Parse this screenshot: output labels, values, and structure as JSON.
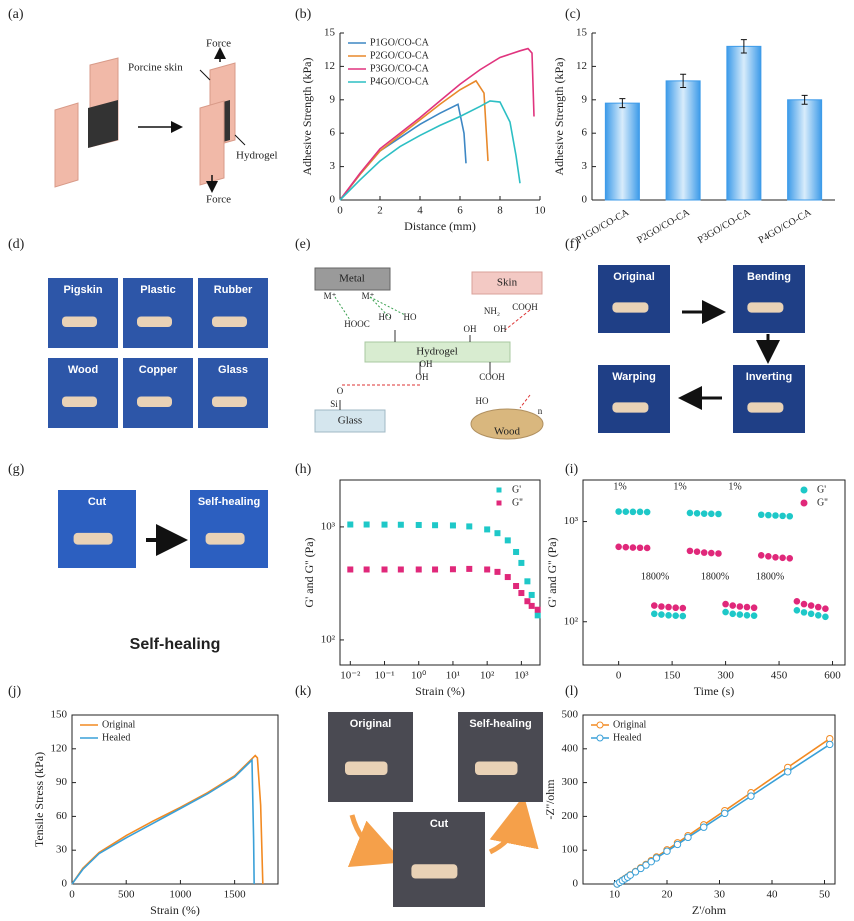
{
  "panel_labels": [
    "(a)",
    "(b)",
    "(c)",
    "(d)",
    "(e)",
    "(f)",
    "(g)",
    "(h)",
    "(i)",
    "(j)",
    "(k)",
    "(l)"
  ],
  "panel_a": {
    "labels": [
      "Force",
      "Porcine skin",
      "Hydrogel",
      "Force"
    ]
  },
  "panel_d": {
    "tiles": [
      "Pigskin",
      "Plastic",
      "Rubber",
      "Wood",
      "Copper",
      "Glass"
    ]
  },
  "panel_e": {
    "nodes": [
      "Metal",
      "Skin",
      "Hydrogel",
      "Glass",
      "Wood"
    ],
    "groups": [
      "M⁺",
      "M⁺",
      "HOOC",
      "HO",
      "HO",
      "NH₂",
      "COOH",
      "OH",
      "OH",
      "OH",
      "O",
      "Si",
      "COOH",
      "HO",
      "OH",
      "n"
    ]
  },
  "panel_f": {
    "tiles": [
      "Original",
      "Bending",
      "Inverting",
      "Warping"
    ]
  },
  "panel_g": {
    "tiles": [
      "Cut",
      "Self-healing"
    ],
    "caption": "Self-healing"
  },
  "panel_k": {
    "tiles": [
      "Original",
      "Self-healing",
      "Cut"
    ]
  },
  "chart_data": [
    {
      "type": "line",
      "xlabel": "Distance (mm)",
      "ylabel": "Adhesive Strength (kPa)",
      "frame": false,
      "xlim": [
        0,
        10
      ],
      "xticks": [
        0,
        2,
        4,
        6,
        8,
        10
      ],
      "ylim": [
        0,
        15
      ],
      "yticks": [
        0,
        3,
        6,
        9,
        12,
        15
      ],
      "legend": "upper left",
      "series": [
        {
          "name": "P1GO/CO-CA",
          "color": "#3d87c4",
          "x": [
            0,
            1,
            2,
            3,
            4,
            5,
            5.9,
            6.2,
            6.3
          ],
          "values": [
            0,
            2.3,
            4.4,
            5.6,
            6.8,
            7.8,
            8.6,
            6,
            3.3
          ]
        },
        {
          "name": "P2GO/CO-CA",
          "color": "#e8892b",
          "x": [
            0,
            1,
            2,
            3,
            4,
            5,
            6,
            6.8,
            7.2,
            7.4
          ],
          "values": [
            0,
            2.3,
            4.4,
            5.8,
            7.2,
            8.6,
            9.9,
            10.7,
            9.6,
            3.5
          ]
        },
        {
          "name": "P3GO/CO-CA",
          "color": "#e0347e",
          "x": [
            0,
            1,
            2,
            3,
            4,
            5,
            6,
            7,
            8,
            9,
            9.4,
            9.6,
            9.7
          ],
          "values": [
            0,
            2.4,
            4.6,
            6,
            7.4,
            8.9,
            10.4,
            11.7,
            12.8,
            13.4,
            13.6,
            13.2,
            7.5
          ]
        },
        {
          "name": "P4GO/CO-CA",
          "color": "#2dbfc4",
          "x": [
            0,
            1,
            2,
            3,
            4,
            5,
            6,
            7,
            7.5,
            8,
            8.5,
            8.8,
            9
          ],
          "values": [
            0,
            1.8,
            3.5,
            4.8,
            5.8,
            6.7,
            7.5,
            8.4,
            8.9,
            8.8,
            7,
            4,
            1.5
          ]
        }
      ]
    },
    {
      "type": "bar",
      "ylabel": "Adhesive Strength (kPa)",
      "frame": false,
      "color": "#3d9be9",
      "categories": [
        "P1GO/CO-CA",
        "P2GO/CO-CA",
        "P3GO/CO-CA",
        "P4GO/CO-CA"
      ],
      "values": [
        8.7,
        10.7,
        13.8,
        9.0
      ],
      "errors": [
        0.4,
        0.6,
        0.6,
        0.4
      ],
      "ylim": [
        0,
        15
      ],
      "yticks": [
        0,
        3,
        6,
        9,
        12,
        15
      ]
    },
    {
      "type": "scatter",
      "marker": "square",
      "xlabel": "Strain (%)",
      "ylabel": "G' and G'' (Pa)",
      "frame": true,
      "xlog": true,
      "ylog": true,
      "xlim": [
        0.005,
        3500
      ],
      "ylim": [
        60,
        2600
      ],
      "legend": "upper right",
      "xticks": [
        {
          "value": 0.01,
          "label": "10⁻²"
        },
        {
          "value": 0.1,
          "label": "10⁻¹"
        },
        {
          "value": 1,
          "label": "10⁰"
        },
        {
          "value": 10,
          "label": "10¹"
        },
        {
          "value": 100,
          "label": "10²"
        },
        {
          "value": 1000,
          "label": "10³"
        }
      ],
      "yticks": [
        {
          "value": 100,
          "label": "10²"
        },
        {
          "value": 1000,
          "label": "10³"
        }
      ],
      "x": [
        0.01,
        0.03,
        0.1,
        0.3,
        1,
        3,
        10,
        30,
        100,
        200,
        400,
        700,
        1000,
        1500,
        2000,
        3000
      ],
      "series": [
        {
          "name": "G'",
          "color": "#1ec8c8",
          "values": [
            1050,
            1050,
            1048,
            1045,
            1040,
            1035,
            1030,
            1010,
            950,
            880,
            760,
            600,
            480,
            330,
            250,
            165
          ]
        },
        {
          "name": "G''",
          "color": "#e0287a",
          "values": [
            420,
            420,
            420,
            420,
            420,
            420,
            422,
            425,
            420,
            400,
            360,
            300,
            260,
            220,
            200,
            185
          ]
        }
      ]
    },
    {
      "type": "scatter",
      "marker": "circle",
      "xlabel": "Time (s)",
      "ylabel": "G' and G'' (Pa)",
      "frame": true,
      "ylog": true,
      "xlim": [
        -100,
        635
      ],
      "ylim": [
        37,
        2600
      ],
      "legend": "upper right",
      "xticks": [
        0,
        150,
        300,
        450,
        600
      ],
      "yticks": [
        {
          "value": 100,
          "label": "10²"
        },
        {
          "value": 1000,
          "label": "10³"
        }
      ],
      "annotations": [
        "1%",
        "1%",
        "1%",
        "1800%",
        "1800%",
        "1800%"
      ],
      "x": [
        0,
        20,
        40,
        60,
        80,
        100,
        120,
        140,
        160,
        180,
        200,
        220,
        240,
        260,
        280,
        300,
        320,
        340,
        360,
        380,
        400,
        420,
        440,
        460,
        480,
        500,
        520,
        540,
        560,
        580
      ],
      "series": [
        {
          "name": "G'",
          "color": "#1ec8c8",
          "values": [
            1260,
            1255,
            1250,
            1250,
            1245,
            120,
            118,
            116,
            115,
            114,
            1220,
            1210,
            1200,
            1195,
            1190,
            125,
            120,
            118,
            116,
            115,
            1170,
            1160,
            1150,
            1140,
            1130,
            130,
            124,
            120,
            116,
            112
          ]
        },
        {
          "name": "G''",
          "color": "#e0287a",
          "values": [
            560,
            555,
            550,
            548,
            545,
            145,
            142,
            140,
            138,
            137,
            510,
            500,
            490,
            485,
            480,
            150,
            145,
            142,
            140,
            138,
            460,
            450,
            440,
            435,
            430,
            160,
            150,
            145,
            140,
            135
          ]
        }
      ]
    },
    {
      "type": "line",
      "xlabel": "Strain (%)",
      "ylabel": "Tensile Stress (kPa)",
      "frame": true,
      "xlim": [
        0,
        1900
      ],
      "xticks": [
        0,
        500,
        1000,
        1500
      ],
      "ylim": [
        0,
        150
      ],
      "yticks": [
        0,
        30,
        60,
        90,
        120,
        150
      ],
      "legend": "upper left",
      "series": [
        {
          "name": "Original",
          "color": "#f28a22",
          "x": [
            0,
            100,
            250,
            500,
            750,
            1000,
            1250,
            1500,
            1690,
            1710,
            1740,
            1760
          ],
          "values": [
            0,
            14,
            28,
            43,
            56,
            68,
            81,
            96,
            114,
            112,
            70,
            0
          ]
        },
        {
          "name": "Healed",
          "color": "#3aa0d8",
          "x": [
            0,
            100,
            250,
            500,
            750,
            1000,
            1250,
            1500,
            1660,
            1675,
            1680
          ],
          "values": [
            0,
            13,
            27,
            41,
            54,
            67,
            80,
            95,
            110,
            40,
            0
          ]
        }
      ]
    },
    {
      "type": "line",
      "markers": true,
      "xlabel": "Z'/ohm",
      "ylabel": "-Z''/ohm",
      "frame": true,
      "xlim": [
        4,
        52
      ],
      "xticks": [
        10,
        20,
        30,
        40,
        50
      ],
      "ylim": [
        0,
        500
      ],
      "yticks": [
        0,
        100,
        200,
        300,
        400,
        500
      ],
      "legend": "upper left",
      "x": [
        10.5,
        11,
        11.5,
        12,
        12.5,
        13,
        14,
        15,
        16,
        17,
        18,
        20,
        22,
        24,
        27,
        31,
        36,
        43,
        51
      ],
      "series": [
        {
          "name": "Original",
          "color": "#f28a22",
          "values": [
            0,
            5,
            11,
            16,
            21,
            27,
            37,
            48,
            58,
            69,
            80,
            101,
            122,
            143,
            175,
            217,
            270,
            345,
            430
          ]
        },
        {
          "name": "Healed",
          "color": "#3aa0d8",
          "values": [
            0,
            5,
            10,
            15,
            20,
            26,
            36,
            46,
            56,
            66,
            77,
            97,
            117,
            138,
            168,
            209,
            260,
            332,
            413
          ]
        }
      ]
    }
  ]
}
